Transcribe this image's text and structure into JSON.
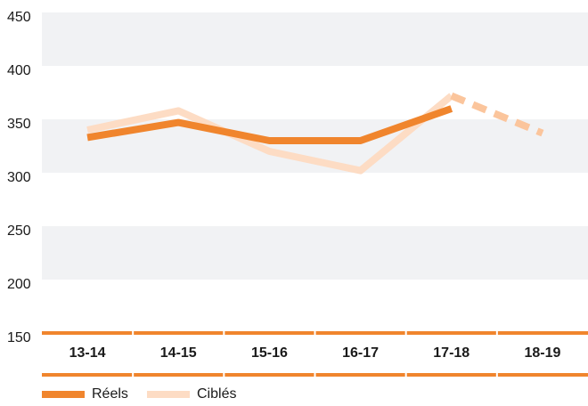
{
  "chart_data": {
    "type": "line",
    "categories": [
      "13-14",
      "14-15",
      "15-16",
      "16-17",
      "17-18",
      "18-19"
    ],
    "series": [
      {
        "name": "Réels",
        "color": "#f0852d",
        "values": [
          333,
          347,
          330,
          330,
          360,
          null
        ]
      },
      {
        "name": "Ciblés",
        "color": "#fddcc4",
        "values": [
          340,
          358,
          320,
          302,
          372,
          337
        ],
        "dashed_from_index": 4,
        "dash_color": "#fbc59c"
      }
    ],
    "ylim": [
      150,
      450
    ],
    "yticks": [
      150,
      200,
      250,
      300,
      350,
      400,
      450
    ],
    "grid": "bands",
    "band_color": "#f1f2f4",
    "axis_color": "#f0852d",
    "legend": "bottom-left"
  }
}
